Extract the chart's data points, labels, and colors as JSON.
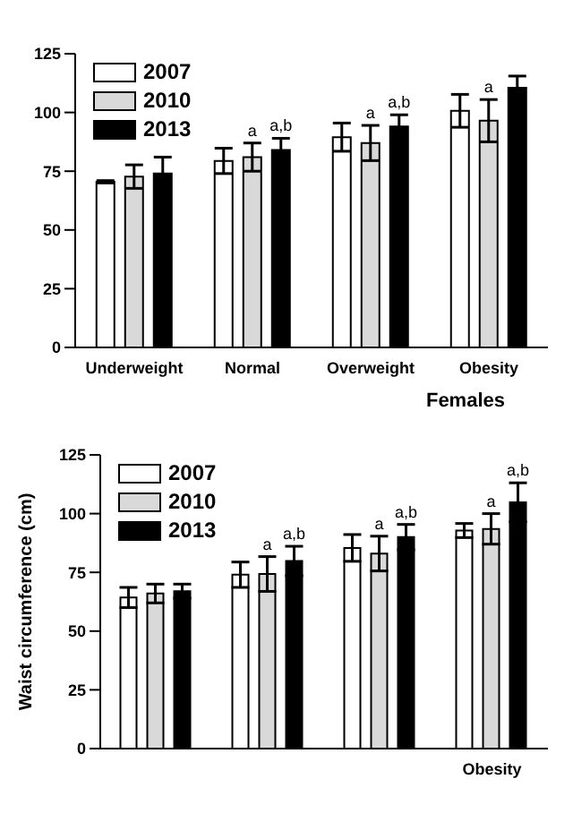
{
  "chart_data": [
    {
      "type": "bar",
      "categories": [
        "Underweight",
        "Normal",
        "Overweight",
        "Obesity"
      ],
      "ylim": [
        0,
        125
      ],
      "yticks": [
        0,
        25,
        50,
        75,
        100,
        125
      ],
      "legend": "top left",
      "grid": false,
      "series": [
        {
          "name": "2007",
          "color": "#ffffff",
          "values": [
            70.5,
            79.4,
            89.5,
            100.7
          ],
          "errors": [
            0.5,
            5.4,
            6,
            7
          ]
        },
        {
          "name": "2010",
          "color": "#d9d9d9",
          "values": [
            72.7,
            81,
            87,
            96.5
          ],
          "errors": [
            5,
            6,
            7.5,
            9
          ],
          "value_labels": [
            null,
            "a",
            "a",
            "a"
          ]
        },
        {
          "name": "2013",
          "color": "#000000",
          "values": [
            74,
            84,
            94,
            110.5
          ],
          "errors": [
            7,
            5,
            5,
            5
          ],
          "value_labels": [
            null,
            "a,b",
            "a,b",
            null
          ]
        }
      ]
    },
    {
      "type": "bar",
      "title": "Females",
      "ylabel": "Waist circumference (cm)",
      "categories": [
        null,
        null,
        null,
        "Obesity"
      ],
      "ylim": [
        0,
        125
      ],
      "yticks": [
        0,
        25,
        50,
        75,
        100,
        125
      ],
      "legend": "top left",
      "grid": false,
      "series": [
        {
          "name": "2007",
          "color": "#ffffff",
          "values": [
            64.3,
            74,
            85.4,
            92.8
          ],
          "errors": [
            4.3,
            5.4,
            5.7,
            3
          ]
        },
        {
          "name": "2010",
          "color": "#d9d9d9",
          "values": [
            66,
            74.3,
            83,
            93.5
          ],
          "errors": [
            4,
            7.4,
            7.4,
            6.5
          ],
          "value_labels": [
            null,
            "a",
            "a",
            "a"
          ]
        },
        {
          "name": "2013",
          "color": "#000000",
          "values": [
            67,
            79.8,
            90,
            104.8
          ],
          "errors": [
            3,
            6.3,
            5.4,
            8.3
          ],
          "value_labels": [
            null,
            "a,b",
            "a,b",
            "a,b"
          ]
        }
      ]
    }
  ]
}
